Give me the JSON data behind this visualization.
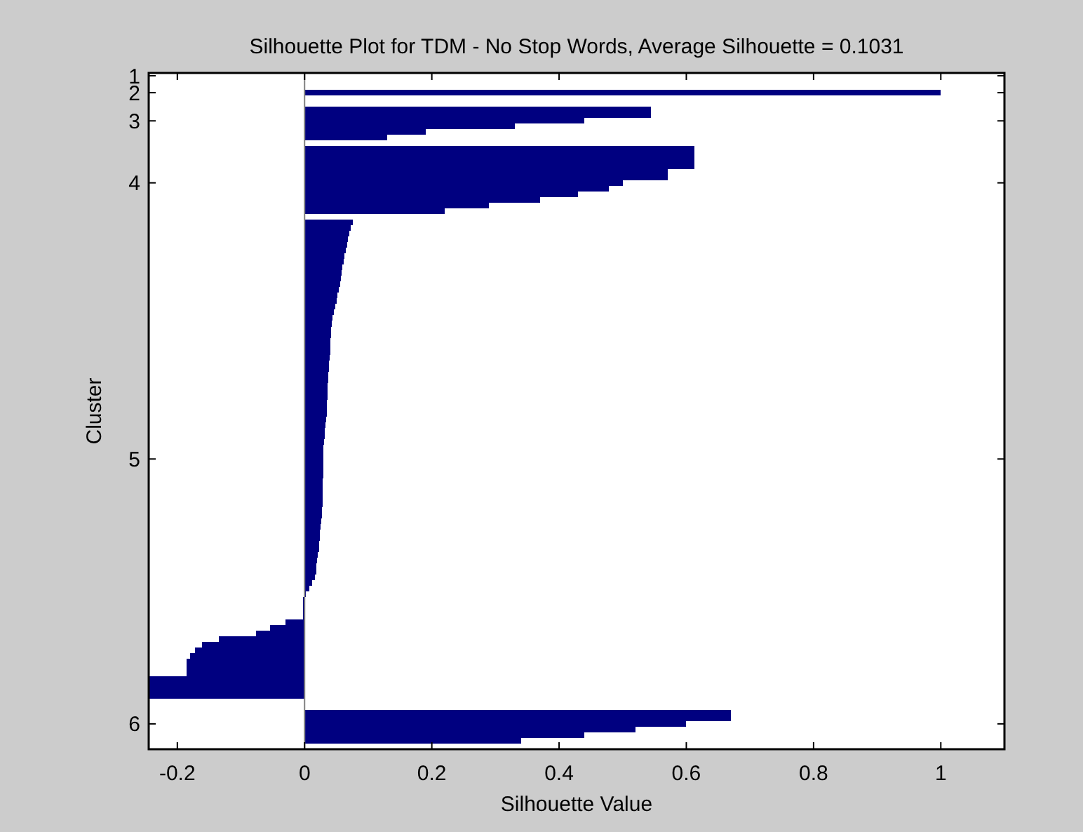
{
  "chart_data": {
    "type": "bar",
    "orientation": "horizontal",
    "title": "Silhouette Plot for TDM - No Stop Words, Average Silhouette = 0.1031",
    "xlabel": "Silhouette Value",
    "ylabel": "Cluster",
    "color": "#000080",
    "categories": [
      "1",
      null,
      null,
      "2",
      null,
      null,
      null,
      null,
      "3",
      null,
      null,
      null,
      null,
      null,
      null,
      null,
      null,
      null,
      null,
      "4",
      null,
      null,
      null,
      null,
      null,
      null,
      null,
      null,
      null,
      null,
      null,
      null,
      null,
      null,
      null,
      null,
      null,
      null,
      null,
      null,
      null,
      null,
      null,
      null,
      null,
      null,
      null,
      null,
      null,
      null,
      null,
      null,
      null,
      null,
      null,
      null,
      null,
      null,
      null,
      null,
      null,
      null,
      null,
      null,
      null,
      null,
      null,
      null,
      "5",
      null,
      null,
      null,
      null,
      null,
      null,
      null,
      null,
      null,
      null,
      null,
      null,
      null,
      null,
      null,
      null,
      null,
      null,
      null,
      null,
      null,
      null,
      null,
      null,
      null,
      null,
      null,
      null,
      null,
      null,
      null,
      null,
      null,
      null,
      null,
      null,
      null,
      null,
      null,
      null,
      null,
      null,
      null,
      null,
      null,
      null,
      "6",
      null,
      null,
      null,
      null
    ],
    "values": [
      0,
      null,
      null,
      1,
      null,
      null,
      0.544,
      0.544,
      0.44,
      0.33,
      0.19,
      0.13,
      null,
      0.613,
      0.613,
      0.613,
      0.613,
      0.571,
      0.571,
      0.5,
      0.478,
      0.43,
      0.37,
      0.29,
      0.22,
      null,
      0.076,
      0.073,
      0.07,
      0.068,
      0.067,
      0.065,
      0.063,
      0.061,
      0.059,
      0.058,
      0.057,
      0.056,
      0.054,
      0.052,
      0.05,
      0.048,
      0.046,
      0.044,
      0.043,
      0.042,
      0.042,
      0.041,
      0.041,
      0.04,
      0.039,
      0.038,
      0.038,
      0.037,
      0.037,
      0.036,
      0.036,
      0.036,
      0.035,
      0.035,
      0.035,
      0.034,
      0.033,
      0.032,
      0.032,
      0.031,
      0.03,
      0.03,
      0.03,
      0.029,
      0.029,
      0.029,
      0.028,
      0.028,
      0.028,
      0.028,
      0.028,
      0.027,
      0.027,
      0.026,
      0.025,
      0.024,
      0.024,
      0.023,
      0.023,
      0.021,
      0.02,
      0.019,
      0.018,
      0.016,
      0.012,
      0.008,
      0.002,
      -0.002,
      -0.002,
      -0.002,
      -0.002,
      -0.03,
      -0.054,
      -0.076,
      -0.135,
      -0.161,
      -0.172,
      -0.18,
      -0.186,
      -0.186,
      -0.186,
      -0.245,
      -0.245,
      -0.245,
      -0.245,
      null,
      null,
      0.67,
      0.67,
      0.6,
      0.52,
      0.44,
      0.34,
      null
    ],
    "xlim": [
      -0.245,
      1.1
    ],
    "xticks": [
      -0.2,
      0,
      0.2,
      0.4,
      0.6,
      0.8,
      1
    ]
  }
}
